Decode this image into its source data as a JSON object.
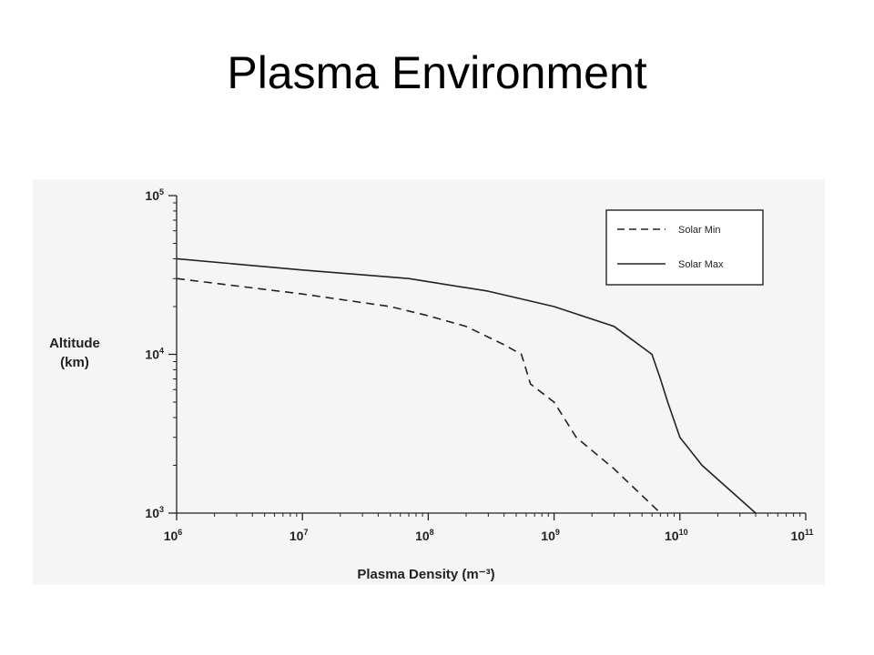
{
  "slide": {
    "title": "Plasma Environment"
  },
  "chart_data": {
    "type": "line",
    "title": "",
    "xlabel": "Plasma Density (m⁻³)",
    "ylabel_lines": [
      "Altitude",
      "(km)"
    ],
    "x_scale": "log",
    "y_scale": "log",
    "xlim": [
      1000000,
      100000000000
    ],
    "ylim": [
      1000,
      100000
    ],
    "x_ticks": [
      {
        "base": "10",
        "exp": "6",
        "value": 1000000
      },
      {
        "base": "10",
        "exp": "7",
        "value": 10000000
      },
      {
        "base": "10",
        "exp": "8",
        "value": 100000000
      },
      {
        "base": "10",
        "exp": "9",
        "value": 1000000000
      },
      {
        "base": "10",
        "exp": "10",
        "value": 10000000000
      },
      {
        "base": "10",
        "exp": "11",
        "value": 100000000000
      }
    ],
    "y_ticks": [
      {
        "base": "10",
        "exp": "3",
        "value": 1000
      },
      {
        "base": "10",
        "exp": "4",
        "value": 10000
      },
      {
        "base": "10",
        "exp": "5",
        "value": 100000
      }
    ],
    "grid": false,
    "legend_position": "top-right",
    "series": [
      {
        "name": "Solar Min",
        "style": "dashed",
        "color": "#222222",
        "x": [
          1000000,
          10000000,
          50000000,
          100000000,
          200000000,
          400000000,
          550000000,
          600000000,
          650000000,
          1000000000,
          1500000000,
          3000000000,
          7000000000
        ],
        "y": [
          30000,
          24000,
          20000,
          17500,
          15000,
          11500,
          10000,
          8000,
          6500,
          5000,
          3000,
          1900,
          1000
        ]
      },
      {
        "name": "Solar Max",
        "style": "solid",
        "color": "#222222",
        "x": [
          1000000,
          10000000,
          70000000,
          300000000,
          1000000000,
          3000000000,
          6000000000,
          7000000000,
          8000000000,
          10000000000,
          15000000000,
          40000000000
        ],
        "y": [
          40000,
          34000,
          30000,
          25000,
          20000,
          15000,
          10000,
          7000,
          5000,
          3000,
          2000,
          1000
        ]
      }
    ]
  },
  "colors": {
    "panel_background": "#f5f5f5",
    "ink": "#222222"
  }
}
